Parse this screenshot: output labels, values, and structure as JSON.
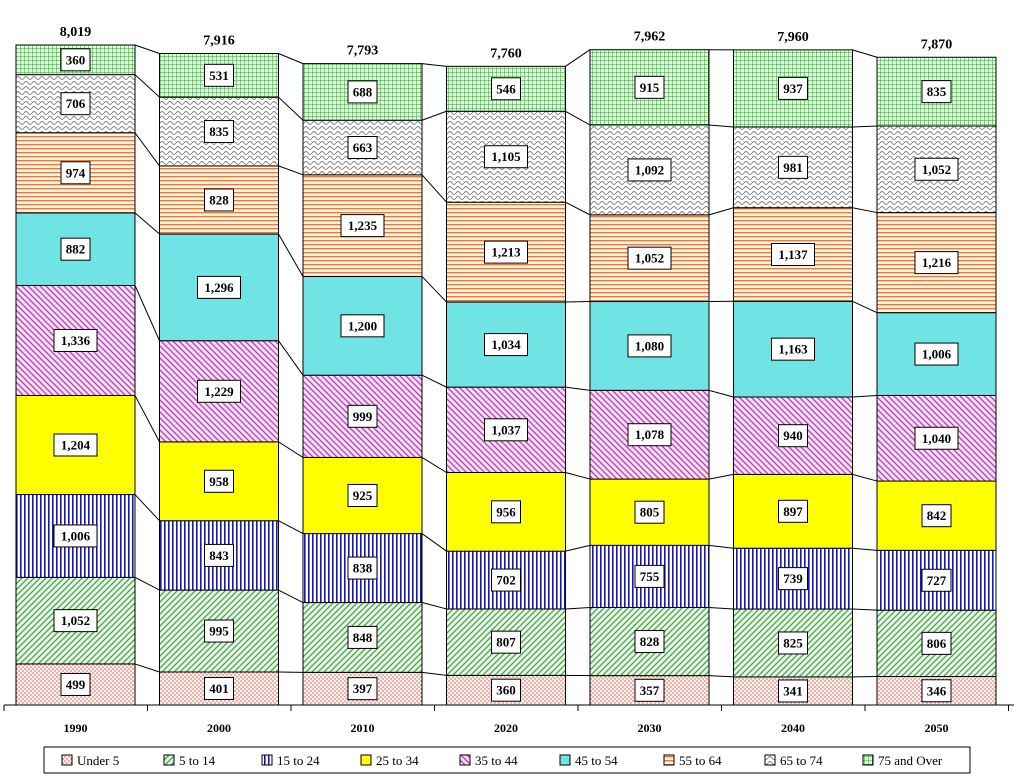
{
  "chart_data": {
    "type": "bar",
    "stacked": true,
    "categories": [
      "1990",
      "2000",
      "2010",
      "2020",
      "2030",
      "2040",
      "2050"
    ],
    "totals": [
      "8,019",
      "7,916",
      "7,793",
      "7,760",
      "7,962",
      "7,960",
      "7,870"
    ],
    "series": [
      {
        "name": "Under 5",
        "values": [
          499,
          401,
          397,
          360,
          357,
          341,
          346
        ],
        "labels": [
          "499",
          "401",
          "397",
          "360",
          "357",
          "341",
          "346"
        ],
        "color": "#f4c8bc",
        "pattern": "dots"
      },
      {
        "name": "5 to 14",
        "values": [
          1052,
          995,
          848,
          807,
          828,
          825,
          806
        ],
        "labels": [
          "1,052",
          "995",
          "848",
          "807",
          "828",
          "825",
          "806"
        ],
        "color": "#a8e0a8",
        "pattern": "diag-up"
      },
      {
        "name": "15 to 24",
        "values": [
          1006,
          843,
          838,
          702,
          755,
          739,
          727
        ],
        "labels": [
          "1,006",
          "843",
          "838",
          "702",
          "755",
          "739",
          "727"
        ],
        "color": "#1a1aa0",
        "pattern": "vertical"
      },
      {
        "name": "25 to 34",
        "values": [
          1204,
          958,
          925,
          956,
          805,
          897,
          842
        ],
        "labels": [
          "1,204",
          "958",
          "925",
          "956",
          "805",
          "897",
          "842"
        ],
        "color": "#ffff00",
        "pattern": "solid"
      },
      {
        "name": "35 to 44",
        "values": [
          1336,
          1229,
          999,
          1037,
          1078,
          940,
          1040
        ],
        "labels": [
          "1,336",
          "1,229",
          "999",
          "1,037",
          "1,078",
          "940",
          "1,040"
        ],
        "color": "#cc66cc",
        "pattern": "diag-down"
      },
      {
        "name": "45 to 54",
        "values": [
          882,
          1296,
          1200,
          1034,
          1080,
          1163,
          1006
        ],
        "labels": [
          "882",
          "1,296",
          "1,200",
          "1,034",
          "1,080",
          "1,163",
          "1,006"
        ],
        "color": "#66e0e0",
        "pattern": "solid"
      },
      {
        "name": "55 to 64",
        "values": [
          974,
          828,
          1235,
          1213,
          1052,
          1137,
          1216
        ],
        "labels": [
          "974",
          "828",
          "1,235",
          "1,213",
          "1,052",
          "1,137",
          "1,216"
        ],
        "color": "#f0a070",
        "pattern": "horizontal"
      },
      {
        "name": "65 to 74",
        "values": [
          706,
          835,
          663,
          1105,
          1092,
          981,
          1052
        ],
        "labels": [
          "706",
          "835",
          "663",
          "1,105",
          "1,092",
          "981",
          "1,052"
        ],
        "color": "#909090",
        "pattern": "wave"
      },
      {
        "name": "75 and Over",
        "values": [
          360,
          531,
          688,
          546,
          915,
          937,
          835
        ],
        "labels": [
          "360",
          "531",
          "688",
          "546",
          "915",
          "937",
          "835"
        ],
        "color": "#40a040",
        "pattern": "grid"
      }
    ],
    "title": "",
    "xlabel": "",
    "ylabel": "",
    "legend_position": "bottom",
    "grid": false
  }
}
